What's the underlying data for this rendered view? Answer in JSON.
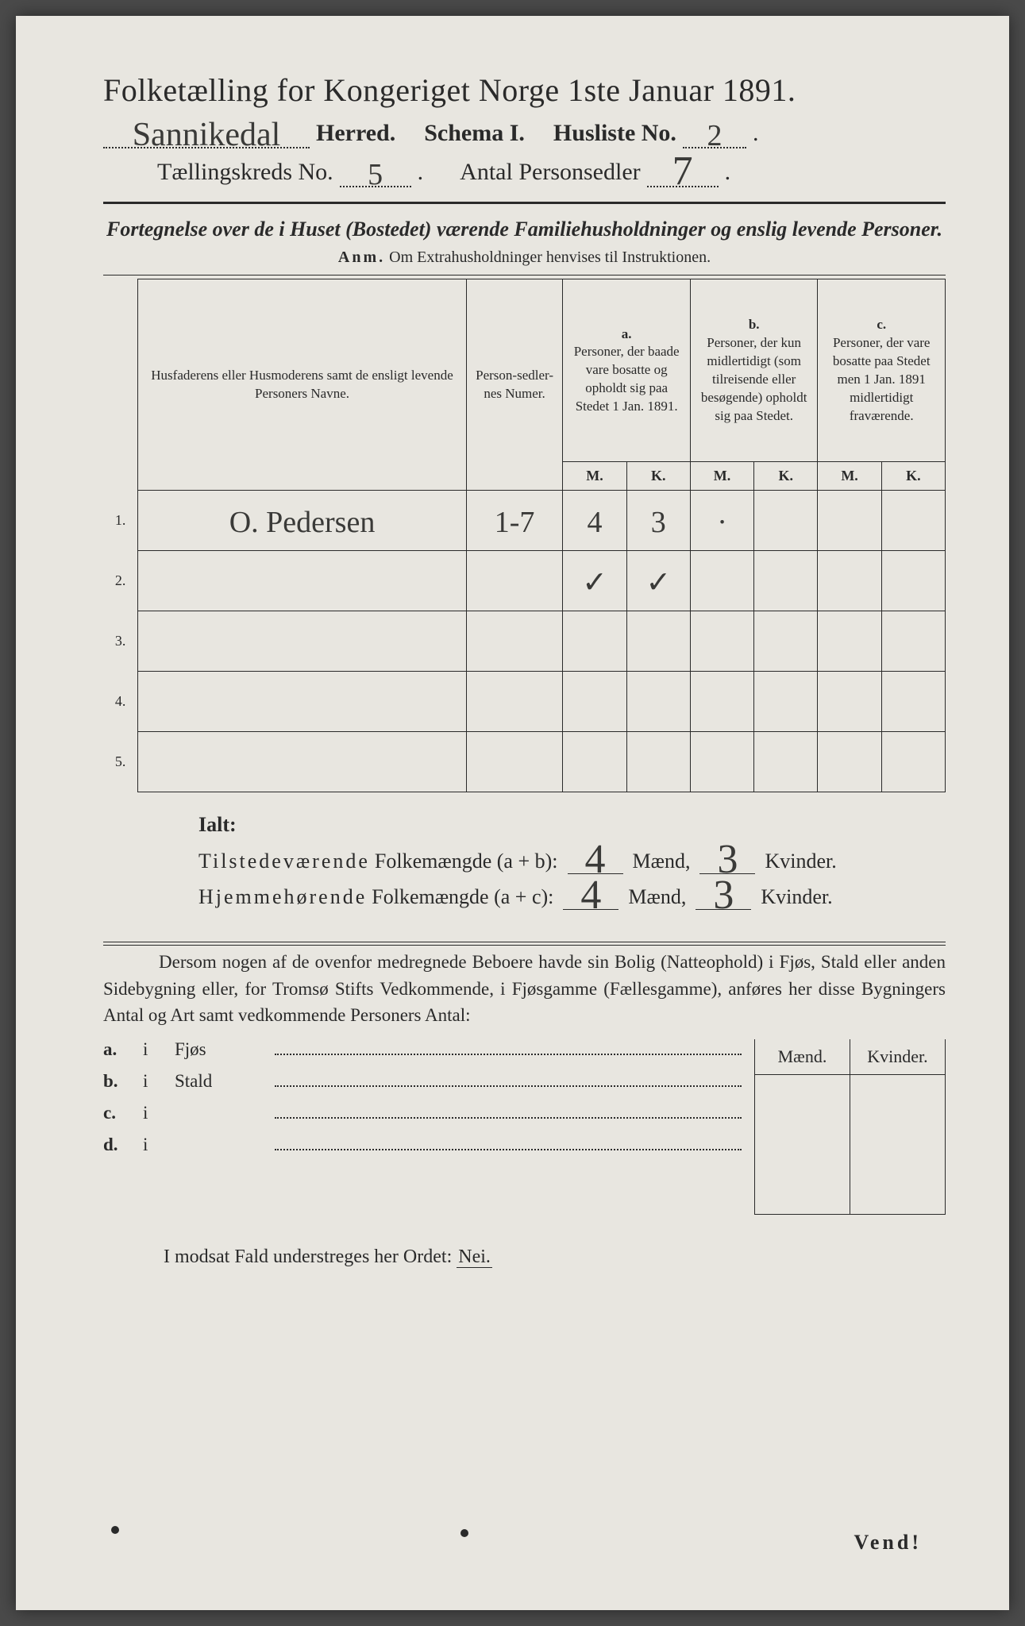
{
  "title": "Folketælling for Kongeriget Norge 1ste Januar 1891.",
  "header": {
    "herred_value": "Sannikedal",
    "herred_label": "Herred.",
    "schema_label": "Schema I.",
    "husliste_label": "Husliste No.",
    "husliste_value": "2",
    "kreds_label": "Tællingskreds No.",
    "kreds_value": "5",
    "antal_label": "Antal Personsedler",
    "antal_value": "7"
  },
  "subtitle": "Fortegnelse over de i Huset (Bostedet) værende Familiehusholdninger og enslig levende Personer.",
  "anm_label": "Anm.",
  "anm_text": "Om Extrahusholdninger henvises til Instruktionen.",
  "table": {
    "col1": "Husfaderens eller Husmoderens samt de ensligt levende Personers Navne.",
    "col2": "Person-sedler-nes Numer.",
    "col_a_label": "a.",
    "col_a": "Personer, der baade vare bosatte og opholdt sig paa Stedet 1 Jan. 1891.",
    "col_b_label": "b.",
    "col_b": "Personer, der kun midlertidigt (som tilreisende eller besøgende) opholdt sig paa Stedet.",
    "col_c_label": "c.",
    "col_c": "Personer, der vare bosatte paa Stedet men 1 Jan. 1891 midlertidigt fraværende.",
    "M": "M.",
    "K": "K.",
    "rows": [
      {
        "n": "1.",
        "name": "O. Pedersen",
        "num": "1-7",
        "aM": "4",
        "aK": "3",
        "bM": "·",
        "bK": "",
        "cM": "",
        "cK": ""
      },
      {
        "n": "2.",
        "name": "",
        "num": "",
        "aM": "✓",
        "aK": "✓",
        "bM": "",
        "bK": "",
        "cM": "",
        "cK": ""
      },
      {
        "n": "3.",
        "name": "",
        "num": "",
        "aM": "",
        "aK": "",
        "bM": "",
        "bK": "",
        "cM": "",
        "cK": ""
      },
      {
        "n": "4.",
        "name": "",
        "num": "",
        "aM": "",
        "aK": "",
        "bM": "",
        "bK": "",
        "cM": "",
        "cK": ""
      },
      {
        "n": "5.",
        "name": "",
        "num": "",
        "aM": "",
        "aK": "",
        "bM": "",
        "bK": "",
        "cM": "",
        "cK": ""
      }
    ]
  },
  "totals": {
    "ialt": "Ialt:",
    "row1_a": "Tilstedeværende",
    "row1_b": "Folkemængde (a + b):",
    "row2_a": "Hjemmehørende",
    "row2_b": "Folkemængde (a + c):",
    "maend": "Mænd,",
    "kvinder": "Kvinder.",
    "v1m": "4",
    "v1k": "3",
    "v2m": "4",
    "v2k": "3"
  },
  "para": "Dersom nogen af de ovenfor medregnede Beboere havde sin Bolig (Natteophold) i Fjøs, Stald eller anden Sidebygning eller, for Tromsø Stifts Vedkommende, i Fjøsgamme (Fællesgamme), anføres her disse Bygningers Antal og Art samt vedkommende Personers Antal:",
  "bld": {
    "maend": "Mænd.",
    "kvinder": "Kvinder.",
    "rows": [
      {
        "lab": "a.",
        "i": "i",
        "name": "Fjøs"
      },
      {
        "lab": "b.",
        "i": "i",
        "name": "Stald"
      },
      {
        "lab": "c.",
        "i": "i",
        "name": ""
      },
      {
        "lab": "d.",
        "i": "i",
        "name": ""
      }
    ]
  },
  "modsat_a": "I modsat Fald understreges her Ordet:",
  "modsat_b": "Nei.",
  "vend": "Vend!"
}
